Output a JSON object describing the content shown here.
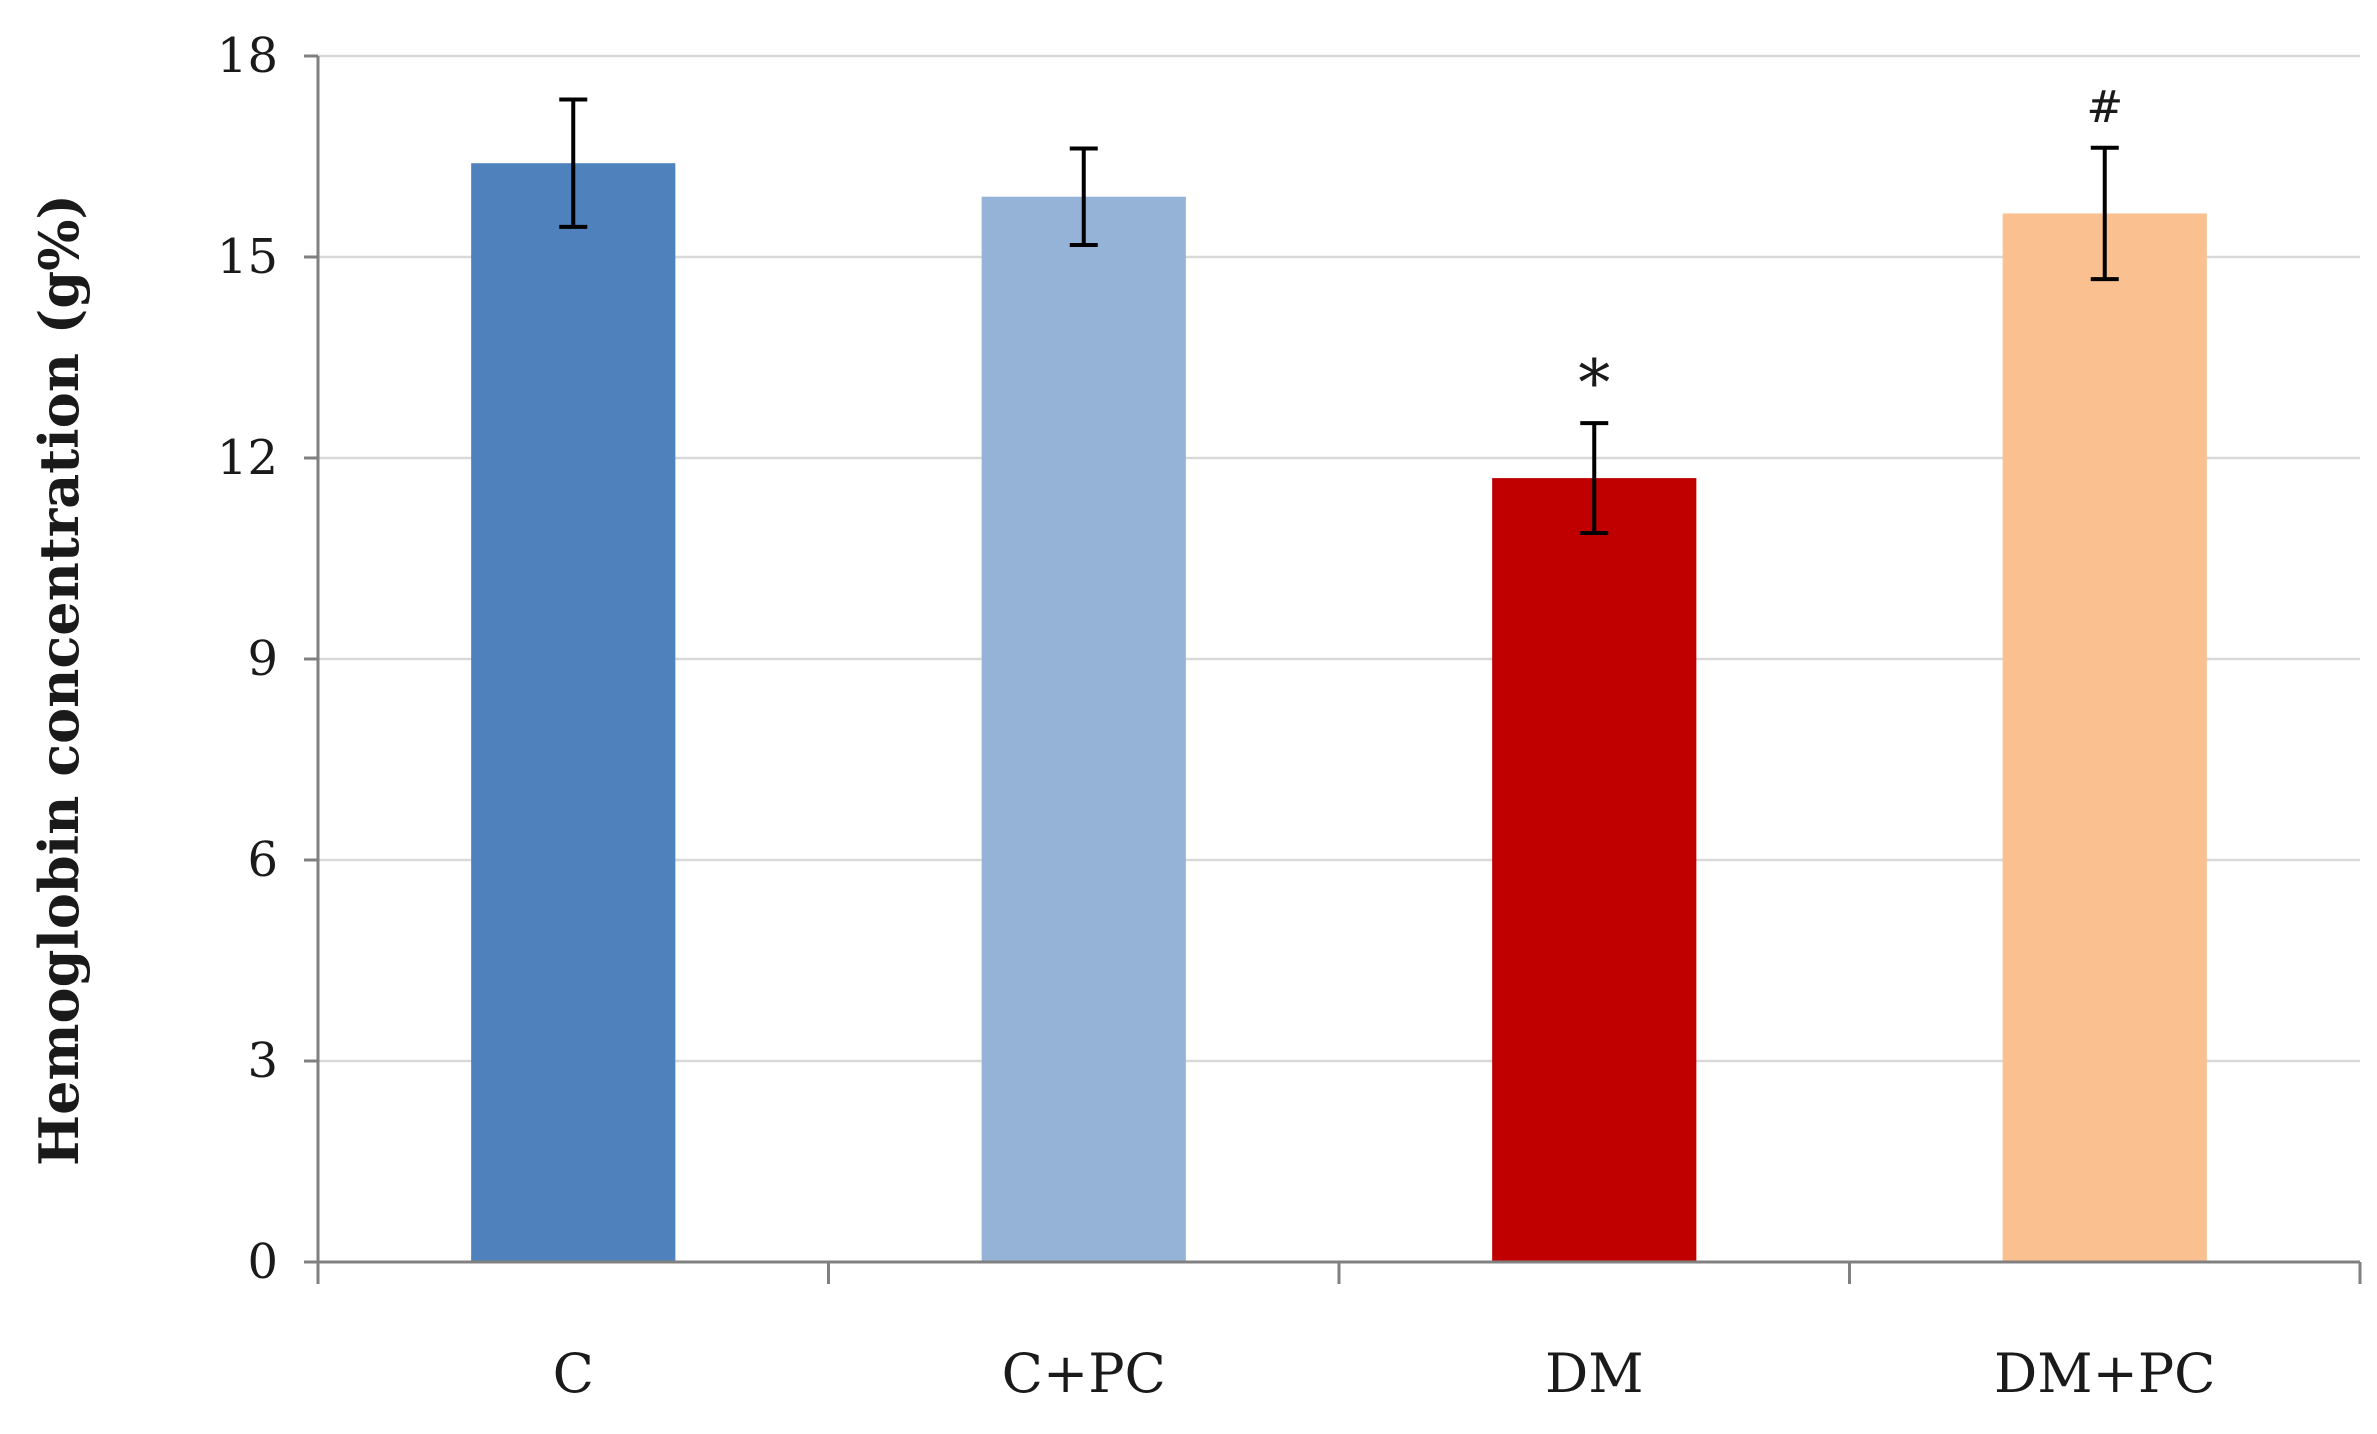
{
  "chart_data": {
    "type": "bar",
    "title": "",
    "xlabel": "",
    "ylabel": "Hemoglobin concentration (g%)",
    "categories": [
      "C",
      "C+PC",
      "DM",
      "DM+PC"
    ],
    "values": [
      16.4,
      15.9,
      11.7,
      15.65
    ],
    "errors": [
      0.95,
      0.72,
      0.82,
      0.98
    ],
    "annotations": [
      "",
      "",
      "*",
      "#"
    ],
    "colors": [
      "#4F81BD",
      "#95B3D7",
      "#C00000",
      "#FAC090"
    ],
    "ylim": [
      0,
      18
    ],
    "yticks": [
      0,
      3,
      6,
      9,
      12,
      15,
      18
    ],
    "grid": true,
    "legend": "none"
  }
}
